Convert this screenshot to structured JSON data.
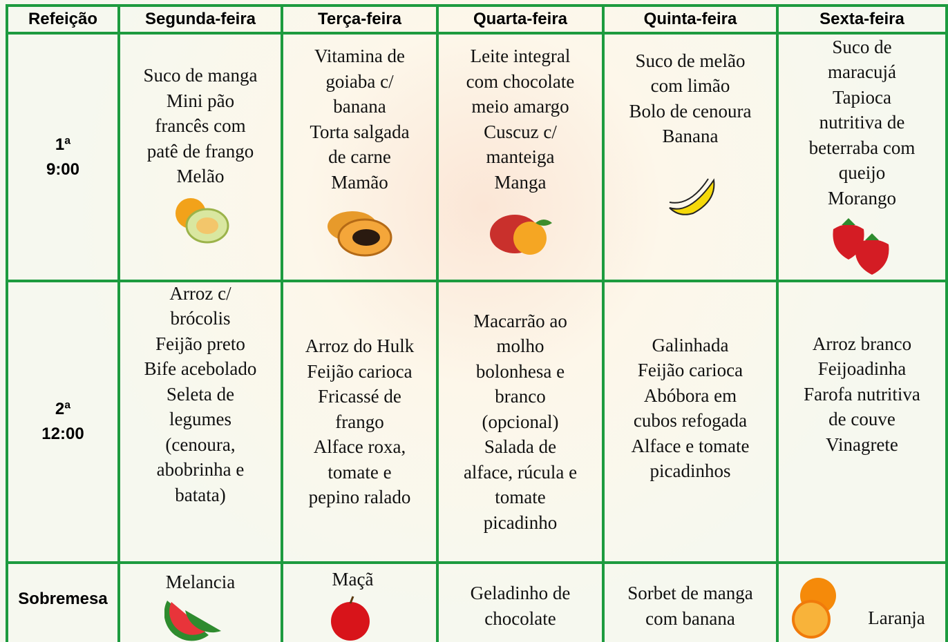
{
  "table": {
    "header": [
      "Refeição",
      "Segunda-feira",
      "Terça-feira",
      "Quarta-feira",
      "Quinta-feira",
      "Sexta-feira"
    ],
    "rows": [
      {
        "meal": [
          "1ª",
          "9:00"
        ],
        "cells": [
          [
            "Suco de manga",
            "Mini pão",
            "francês com",
            "patê de frango",
            "Melão"
          ],
          [
            "Vitamina de",
            "goiaba c/",
            "banana",
            "Torta salgada",
            "de carne",
            "Mamão"
          ],
          [
            "Leite integral",
            "com chocolate",
            "meio amargo",
            "Cuscuz c/",
            "manteiga",
            "Manga"
          ],
          [
            "Suco de melão",
            "com limão",
            "Bolo de cenoura",
            "Banana"
          ],
          [
            "Suco de",
            "maracujá",
            "Tapioca",
            "nutritiva de",
            "beterraba com",
            "queijo",
            "Morango"
          ]
        ]
      },
      {
        "meal": [
          "2ª",
          "12:00"
        ],
        "cells": [
          [
            "Arroz c/",
            "brócolis",
            "Feijão preto",
            "Bife acebolado",
            "Seleta de",
            "legumes",
            "(cenoura,",
            "abobrinha e",
            "batata)"
          ],
          [
            "Arroz do Hulk",
            "Feijão carioca",
            "Fricassé de",
            "frango",
            "Alface roxa,",
            "tomate e",
            "pepino ralado"
          ],
          [
            "Macarrão ao",
            "molho",
            "bolonhesa e",
            "branco",
            "(opcional)",
            "Salada de",
            "alface, rúcula e",
            "tomate",
            "picadinho"
          ],
          [
            "Galinhada",
            "Feijão carioca",
            "Abóbora em",
            "cubos refogada",
            "Alface e tomate",
            "picadinhos"
          ],
          [
            "Arroz branco",
            "Feijoadinha",
            "Farofa nutritiva",
            "de couve",
            "Vinagrete"
          ]
        ]
      },
      {
        "meal": [
          "Sobremesa"
        ],
        "cells": [
          [
            "Melancia"
          ],
          [
            "Maçã"
          ],
          [
            "Geladinho de",
            "chocolate"
          ],
          [
            "Sorbet de manga",
            "com banana"
          ],
          [
            "Laranja"
          ]
        ]
      }
    ]
  }
}
